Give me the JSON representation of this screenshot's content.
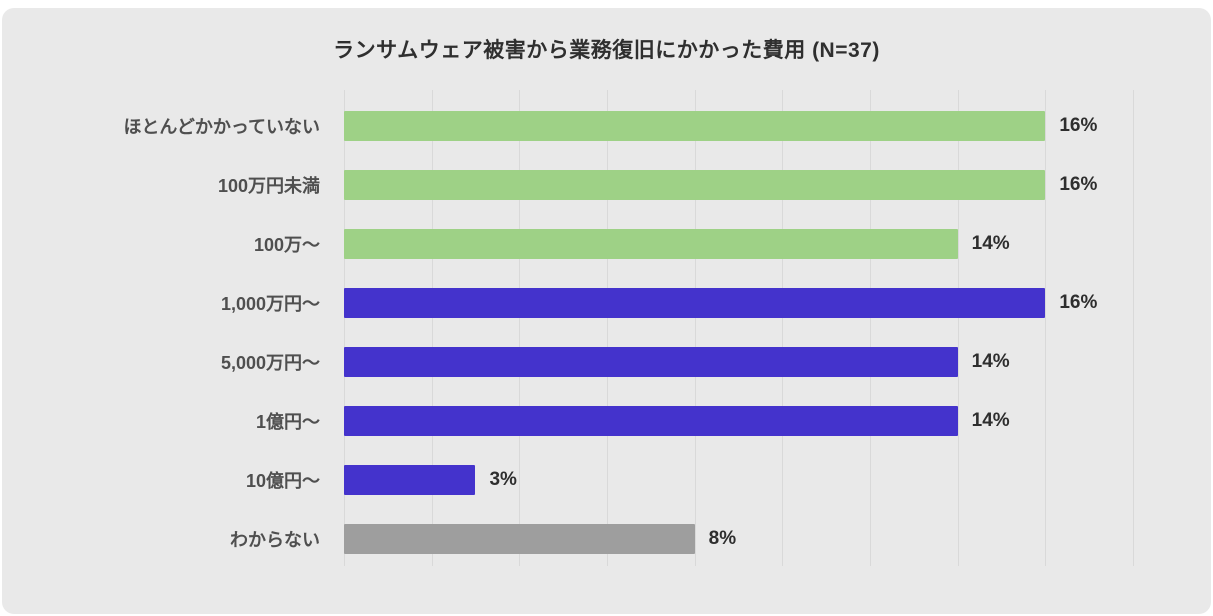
{
  "chart_data": {
    "type": "bar",
    "orientation": "horizontal",
    "title": "ランサムウェア被害から業務復旧にかかった費用 (N=37)",
    "categories": [
      "ほとんどかかっていない",
      "100万円未満",
      "100万〜",
      "1,000万円〜",
      "5,000万円〜",
      "1億円〜",
      "10億円〜",
      "わからない"
    ],
    "values": [
      16,
      16,
      14,
      16,
      14,
      14,
      3,
      8
    ],
    "value_labels": [
      "16%",
      "16%",
      "14%",
      "16%",
      "14%",
      "14%",
      "3%",
      "8%"
    ],
    "bar_colors": [
      "#9ed186",
      "#9ed186",
      "#9ed186",
      "#4433cc",
      "#4433cc",
      "#4433cc",
      "#4433cc",
      "#9e9e9e"
    ],
    "xlim": [
      0,
      18
    ],
    "grid": true,
    "gridline_interval": 2,
    "legend": null,
    "colors": {
      "background": "#e9e9e9",
      "gridline": "#d9d9d9",
      "title_text": "#2f2f2f",
      "category_text": "#4f4f4f",
      "value_text": "#2e2e2e",
      "green_series": "#9ed186",
      "blue_series": "#4433cc",
      "gray_series": "#9e9e9e"
    }
  }
}
